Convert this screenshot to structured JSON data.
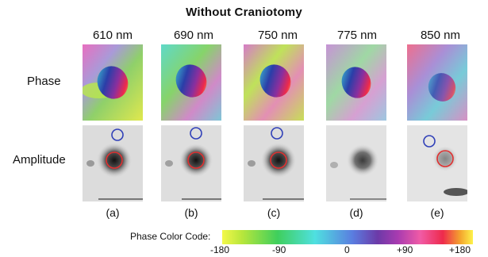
{
  "title": "Without Craniotomy",
  "wavelengths": [
    "610 nm",
    "690 nm",
    "750 nm",
    "775 nm",
    "850 nm"
  ],
  "row_labels": {
    "phase": "Phase",
    "amplitude": "Amplitude"
  },
  "panel_labels": [
    "(a)",
    "(b)",
    "(c)",
    "(d)",
    "(e)"
  ],
  "legend": {
    "label": "Phase Color Code:",
    "ticks": [
      "-180",
      "-90",
      "0",
      "+90",
      "+180"
    ]
  }
}
